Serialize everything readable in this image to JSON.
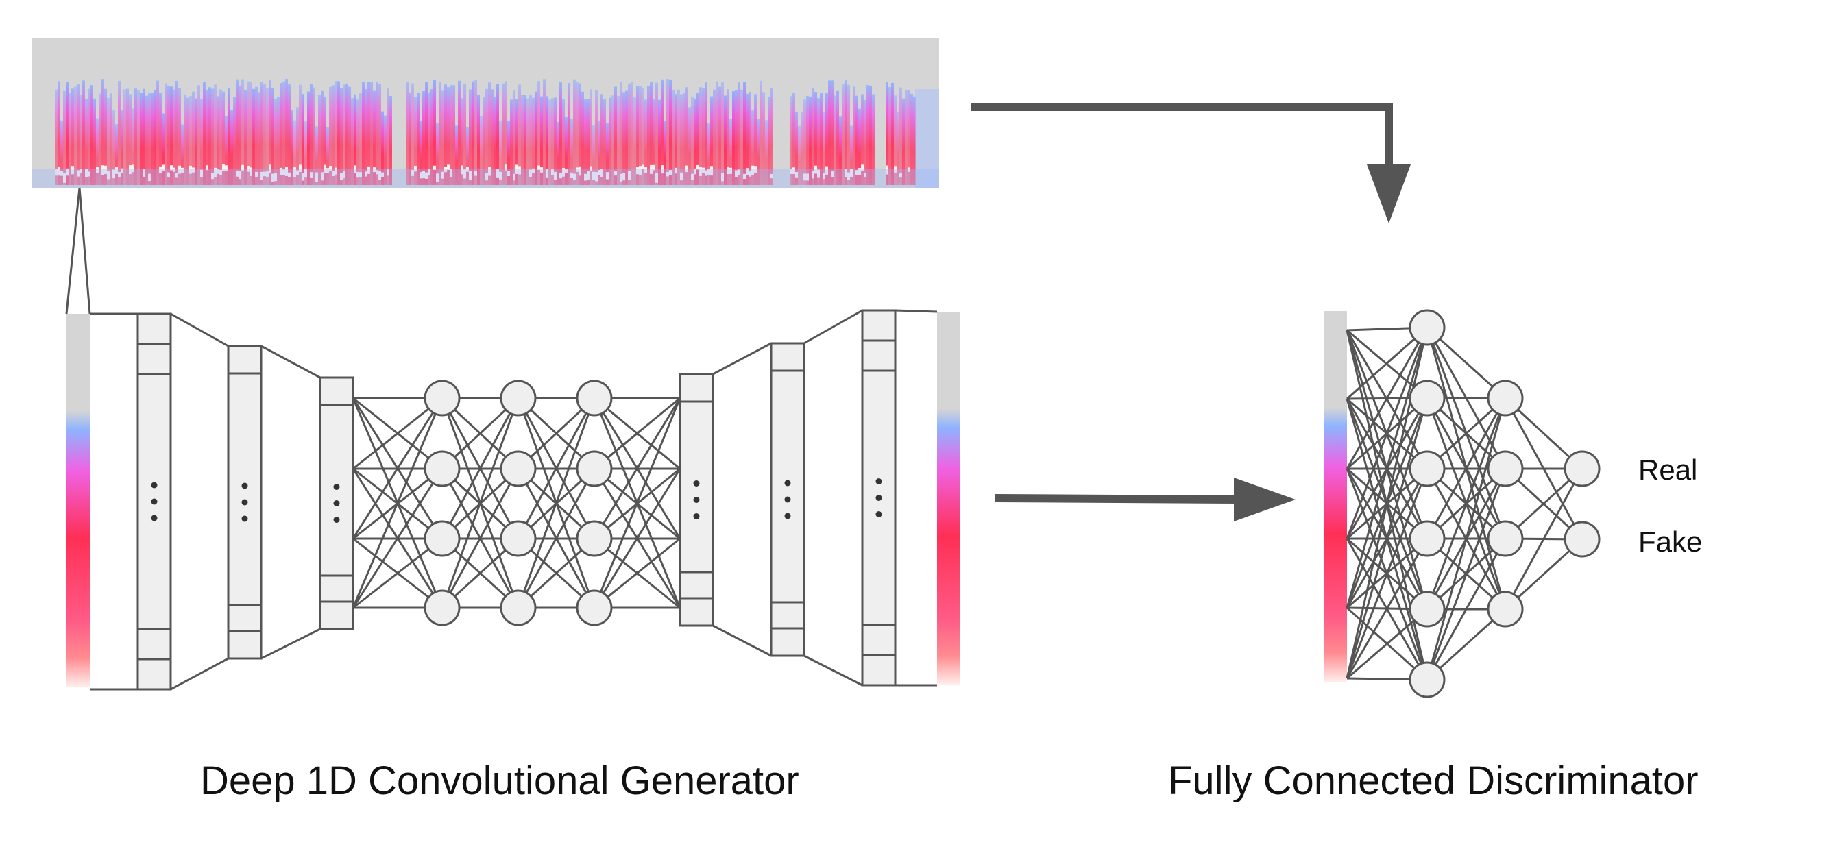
{
  "captions": {
    "generator": "Deep 1D Convolutional Generator",
    "discriminator": "Fully Connected Discriminator"
  },
  "discriminator_outputs": [
    "Real",
    "Fake"
  ],
  "generator_network": {
    "encoder_block_count": 3,
    "bottleneck_layers": 3,
    "bottleneck_nodes_per_layer": 4,
    "decoder_block_count": 3
  },
  "discriminator_network": {
    "layer_node_counts": [
      6,
      4,
      2
    ]
  },
  "colors": {
    "line": "#555555",
    "arrow": "#555555",
    "box_fill": "#efefef",
    "spectrogram_background": "#d5d5d5",
    "spectrogram_low": "#7ba7ff",
    "spectrogram_mid": "#e04ad0",
    "spectrogram_high": "#ff2f5a",
    "spectrogram_peak": "#fff2ee"
  }
}
